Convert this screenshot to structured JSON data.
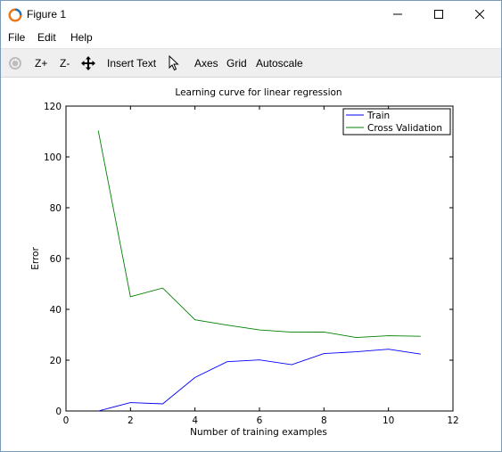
{
  "window": {
    "title": "Figure 1"
  },
  "menu": {
    "items": [
      "File",
      "Edit",
      "Help"
    ]
  },
  "toolbar": {
    "zoom_in": "Z+",
    "zoom_out": "Z-",
    "insert_text": "Insert Text",
    "axes": "Axes",
    "grid": "Grid",
    "autoscale": "Autoscale"
  },
  "chart_data": {
    "type": "line",
    "title": "Learning curve for linear regression",
    "xlabel": "Number of training examples",
    "ylabel": "Error",
    "xlim": [
      0,
      12
    ],
    "ylim": [
      0,
      120
    ],
    "xticks": [
      0,
      2,
      4,
      6,
      8,
      10,
      12
    ],
    "yticks": [
      0,
      20,
      40,
      60,
      80,
      100,
      120
    ],
    "grid": false,
    "legend_position": "top-right",
    "series": [
      {
        "name": "Train",
        "color": "#0000ff",
        "x": [
          1,
          2,
          3,
          4,
          5,
          6,
          7,
          8,
          9,
          10,
          11
        ],
        "y": [
          0,
          3.3,
          2.8,
          13.2,
          19.4,
          20.1,
          18.2,
          22.6,
          23.3,
          24.3,
          22.4
        ]
      },
      {
        "name": "Cross Validation",
        "color": "#008000",
        "x": [
          1,
          2,
          3,
          4,
          5,
          6,
          7,
          8,
          9,
          10,
          11
        ],
        "y": [
          110.3,
          45.0,
          48.4,
          35.9,
          33.8,
          31.9,
          31.0,
          31.1,
          28.9,
          29.6,
          29.4
        ]
      }
    ]
  }
}
